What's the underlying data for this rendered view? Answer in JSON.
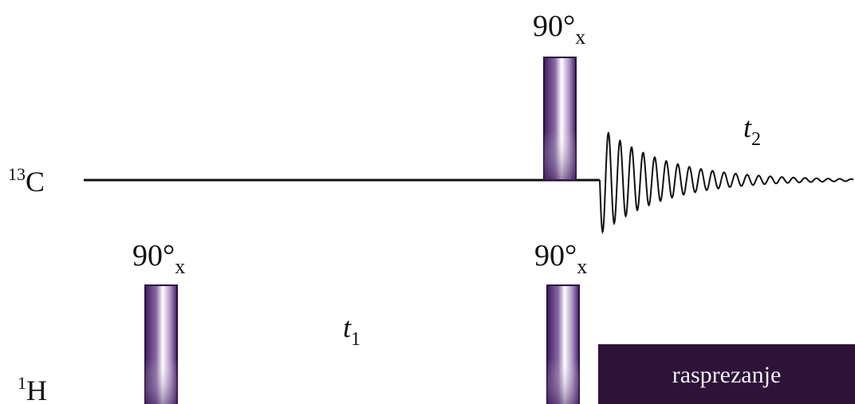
{
  "channels": {
    "carbon": {
      "nucleus_mass": "13",
      "nucleus_symbol": "C"
    },
    "proton": {
      "nucleus_mass": "1",
      "nucleus_symbol": "H"
    }
  },
  "pulses": {
    "h_first": {
      "angle": "90°",
      "phase": "x"
    },
    "h_second": {
      "angle": "90°",
      "phase": "x"
    },
    "c_pulse": {
      "angle": "90°",
      "phase": "x"
    }
  },
  "delays": {
    "evolution": {
      "symbol": "t",
      "index": "1"
    },
    "detection": {
      "symbol": "t",
      "index": "2"
    }
  },
  "decoupling": {
    "label": "rasprezanje"
  },
  "colors": {
    "pulse_dark": "#3f1d5c",
    "pulse_light": "#ffffff",
    "decoupling_block": "#2e1238",
    "line": "#111111"
  }
}
